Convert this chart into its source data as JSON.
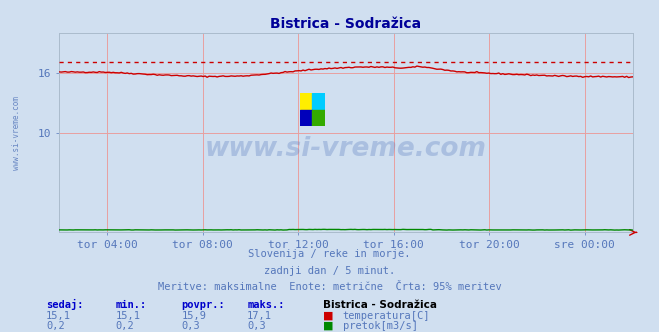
{
  "title_display": "Bistrica - Sodražica",
  "bg_color": "#d0dff0",
  "plot_bg_color": "#d0dff0",
  "grid_color": "#e8a0a0",
  "temp_color": "#cc0000",
  "flow_color": "#008800",
  "text_color": "#5577bb",
  "title_color": "#000099",
  "watermark_color": "#5577bb",
  "xtick_labels": [
    "tor 04:00",
    "tor 08:00",
    "tor 12:00",
    "tor 16:00",
    "tor 20:00",
    "sre 00:00"
  ],
  "ylim": [
    0,
    20
  ],
  "ytick_values": [
    10,
    16
  ],
  "temp_max": 17.1,
  "temp_min": 15.1,
  "temp_avg": 15.9,
  "temp_current": 15.1,
  "flow_max": 0.3,
  "flow_min": 0.2,
  "flow_avg": 0.3,
  "flow_current": 0.2,
  "footer_line1": "Slovenija / reke in morje.",
  "footer_line2": "zadnji dan / 5 minut.",
  "footer_line3": "Meritve: maksimalne  Enote: metrične  Črta: 95% meritev",
  "legend_title": "Bistrica - Sodražica",
  "legend_temp": "temperatura[C]",
  "legend_flow": "pretok[m3/s]",
  "label_sedaj": "sedaj:",
  "label_min": "min.:",
  "label_povpr": "povpr.:",
  "label_maks": "maks.:",
  "watermark_text": "www.si-vreme.com",
  "fig_width": 6.59,
  "fig_height": 3.32,
  "dpi": 100,
  "logo_colors": [
    "#ffee00",
    "#00ccff",
    "#0000bb",
    "#33aa00"
  ]
}
